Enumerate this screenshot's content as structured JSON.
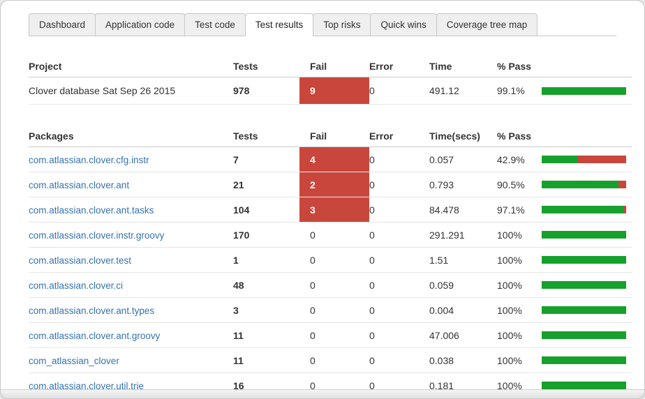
{
  "colors": {
    "pass_green": "#16a02c",
    "fail_red": "#c9463d",
    "link_blue": "#3572b0"
  },
  "tabs": {
    "items": [
      {
        "label": "Dashboard",
        "active": false
      },
      {
        "label": "Application code",
        "active": false
      },
      {
        "label": "Test code",
        "active": false
      },
      {
        "label": "Test results",
        "active": true
      },
      {
        "label": "Top risks",
        "active": false
      },
      {
        "label": "Quick wins",
        "active": false
      },
      {
        "label": "Coverage tree map",
        "active": false
      }
    ]
  },
  "project_table": {
    "headers": {
      "name": "Project",
      "tests": "Tests",
      "fail": "Fail",
      "error": "Error",
      "time": "Time",
      "pass": "% Pass"
    },
    "rows": [
      {
        "name": "Clover database Sat Sep 26 2015",
        "tests": "978",
        "fail": "9",
        "error": "0",
        "time": "491.12",
        "pass": "99.1%",
        "pass_pct": 99.1,
        "fail_highlight": true,
        "link": false
      }
    ]
  },
  "packages_table": {
    "headers": {
      "name": "Packages",
      "tests": "Tests",
      "fail": "Fail",
      "error": "Error",
      "time": "Time(secs)",
      "pass": "% Pass"
    },
    "rows": [
      {
        "name": "com.atlassian.clover.cfg.instr",
        "tests": "7",
        "fail": "4",
        "error": "0",
        "time": "0.057",
        "pass": "42.9%",
        "pass_pct": 42.9,
        "fail_highlight": true,
        "link": true
      },
      {
        "name": "com.atlassian.clover.ant",
        "tests": "21",
        "fail": "2",
        "error": "0",
        "time": "0.793",
        "pass": "90.5%",
        "pass_pct": 90.5,
        "fail_highlight": true,
        "link": true
      },
      {
        "name": "com.atlassian.clover.ant.tasks",
        "tests": "104",
        "fail": "3",
        "error": "0",
        "time": "84.478",
        "pass": "97.1%",
        "pass_pct": 97.1,
        "fail_highlight": true,
        "link": true
      },
      {
        "name": "com.atlassian.clover.instr.groovy",
        "tests": "170",
        "fail": "0",
        "error": "0",
        "time": "291.291",
        "pass": "100%",
        "pass_pct": 100,
        "fail_highlight": false,
        "link": true
      },
      {
        "name": "com.atlassian.clover.test",
        "tests": "1",
        "fail": "0",
        "error": "0",
        "time": "1.51",
        "pass": "100%",
        "pass_pct": 100,
        "fail_highlight": false,
        "link": true
      },
      {
        "name": "com.atlassian.clover.ci",
        "tests": "48",
        "fail": "0",
        "error": "0",
        "time": "0.059",
        "pass": "100%",
        "pass_pct": 100,
        "fail_highlight": false,
        "link": true
      },
      {
        "name": "com.atlassian.clover.ant.types",
        "tests": "3",
        "fail": "0",
        "error": "0",
        "time": "0.004",
        "pass": "100%",
        "pass_pct": 100,
        "fail_highlight": false,
        "link": true
      },
      {
        "name": "com.atlassian.clover.ant.groovy",
        "tests": "11",
        "fail": "0",
        "error": "0",
        "time": "47.006",
        "pass": "100%",
        "pass_pct": 100,
        "fail_highlight": false,
        "link": true
      },
      {
        "name": "com_atlassian_clover",
        "tests": "11",
        "fail": "0",
        "error": "0",
        "time": "0.038",
        "pass": "100%",
        "pass_pct": 100,
        "fail_highlight": false,
        "link": true
      },
      {
        "name": "com.atlassian.clover.util.trie",
        "tests": "16",
        "fail": "0",
        "error": "0",
        "time": "0.181",
        "pass": "100%",
        "pass_pct": 100,
        "fail_highlight": false,
        "link": true
      }
    ]
  }
}
